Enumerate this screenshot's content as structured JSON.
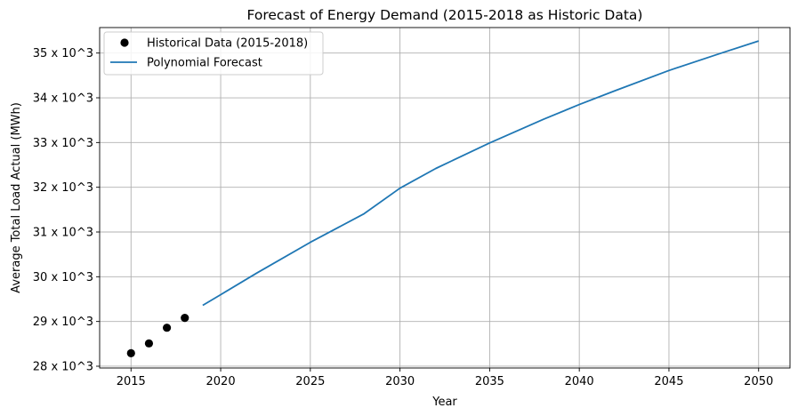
{
  "chart_data": {
    "type": "line",
    "title": "Forecast of Energy Demand (2015-2018 as Historic Data)",
    "xlabel": "Year",
    "ylabel": "Average Total Load Actual (MWh)",
    "xlim": [
      2013.25,
      2051.75
    ],
    "ylim": [
      27960,
      35570
    ],
    "x_ticks": [
      2015,
      2020,
      2025,
      2030,
      2035,
      2040,
      2045,
      2050
    ],
    "x_tick_labels": [
      "2015",
      "2020",
      "2025",
      "2030",
      "2035",
      "2040",
      "2045",
      "2050"
    ],
    "y_ticks": [
      28000,
      29000,
      30000,
      31000,
      32000,
      33000,
      34000,
      35000
    ],
    "y_tick_labels": [
      "28 x 10^3",
      "29 x 10^3",
      "30 x 10^3",
      "31 x 10^3",
      "32 x 10^3",
      "33 x 10^3",
      "34 x 10^3",
      "35 x 10^3"
    ],
    "grid": true,
    "legend_position": "top-left",
    "series": [
      {
        "name": "Historical Data (2015-2018)",
        "kind": "scatter",
        "color": "#000000",
        "x": [
          2015,
          2016,
          2017,
          2018
        ],
        "y": [
          28290,
          28510,
          28860,
          29080
        ]
      },
      {
        "name": "Polynomial Forecast",
        "kind": "line",
        "color": "#1f77b4",
        "x": [
          2019,
          2020,
          2022,
          2025,
          2028,
          2030,
          2032,
          2035,
          2038,
          2040,
          2042,
          2045,
          2048,
          2050
        ],
        "y": [
          29360,
          29600,
          30080,
          30770,
          31410,
          31980,
          32420,
          32990,
          33520,
          33850,
          34160,
          34610,
          35010,
          35270
        ]
      }
    ]
  }
}
